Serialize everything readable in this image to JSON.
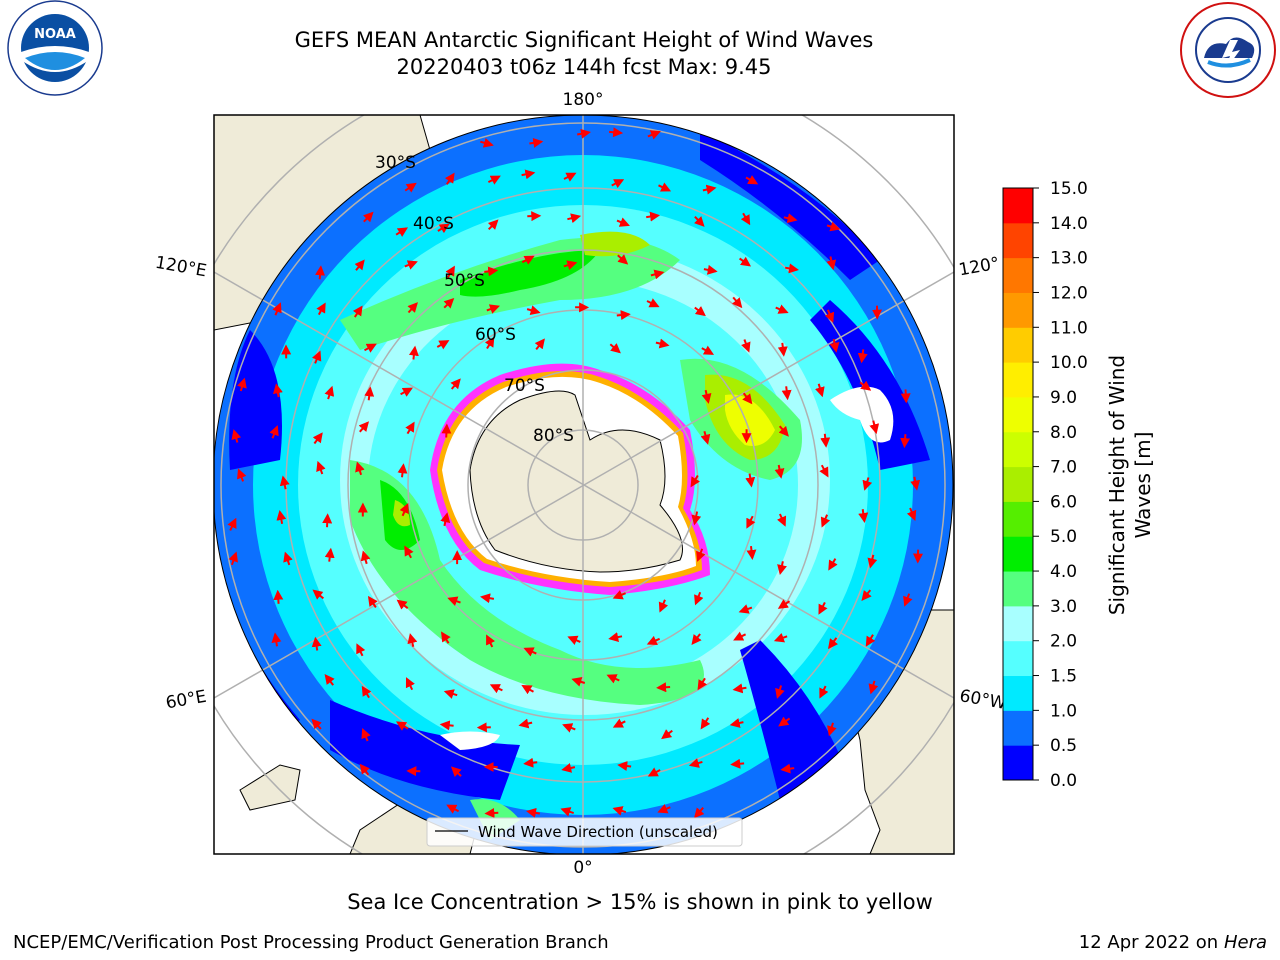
{
  "header": {
    "title_line1": "GEFS MEAN Antarctic Significant Height of Wind Waves",
    "title_line2": "20220403 t06z 144h fcst   Max: 9.45"
  },
  "logos": {
    "left": {
      "icon": "noaa-logo-icon",
      "text": "NOAA",
      "ring_text": "NATIONAL OCEANIC AND ATMOSPHERIC ADMINISTRATION · U.S. DEPARTMENT OF COMMERCE"
    },
    "right": {
      "icon": "nws-logo-icon",
      "ring_text": "NATIONAL WEATHER SERVICE"
    }
  },
  "map": {
    "projection": "south-polar-stereographic",
    "longitude_labels": {
      "top": "180°",
      "bottom": "0°",
      "upper_left": "120°E",
      "upper_right": "120°",
      "lower_left": "60°E",
      "lower_right": "60°W"
    },
    "latitude_labels": [
      "30°S",
      "40°S",
      "50°S",
      "60°S",
      "70°S",
      "80°S"
    ],
    "legend_text": "Wind Wave Direction (unscaled)",
    "colors": {
      "land": "#efebd8",
      "ice": "#ffffff",
      "ice_edge": [
        "#ff33ff",
        "#ffb000"
      ],
      "arrow": "#ff0000",
      "grid": "#b0b0b0"
    }
  },
  "colorbar": {
    "label_line1": "Significant Height of Wind",
    "label_line2": "Waves [m]",
    "ticks": [
      "0.0",
      "0.5",
      "1.0",
      "1.5",
      "2.0",
      "3.0",
      "4.0",
      "5.0",
      "6.0",
      "7.0",
      "8.0",
      "9.0",
      "10.0",
      "11.0",
      "12.0",
      "13.0",
      "14.0",
      "15.0"
    ],
    "colors": [
      "#0000ff",
      "#0c70ff",
      "#00eaff",
      "#55ffff",
      "#a8ffff",
      "#55ff80",
      "#00ee00",
      "#55ee00",
      "#aaee00",
      "#ccff00",
      "#eeff00",
      "#ffee00",
      "#ffcc00",
      "#ff9900",
      "#ff7700",
      "#ff4400",
      "#ff0000"
    ]
  },
  "footer": {
    "note": "Sea Ice Concentration > 15% is shown in pink to yellow",
    "left": "NCEP/EMC/Verification Post Processing Product Generation Branch",
    "right_date": "12 Apr 2022 on ",
    "right_host": "Hera"
  }
}
